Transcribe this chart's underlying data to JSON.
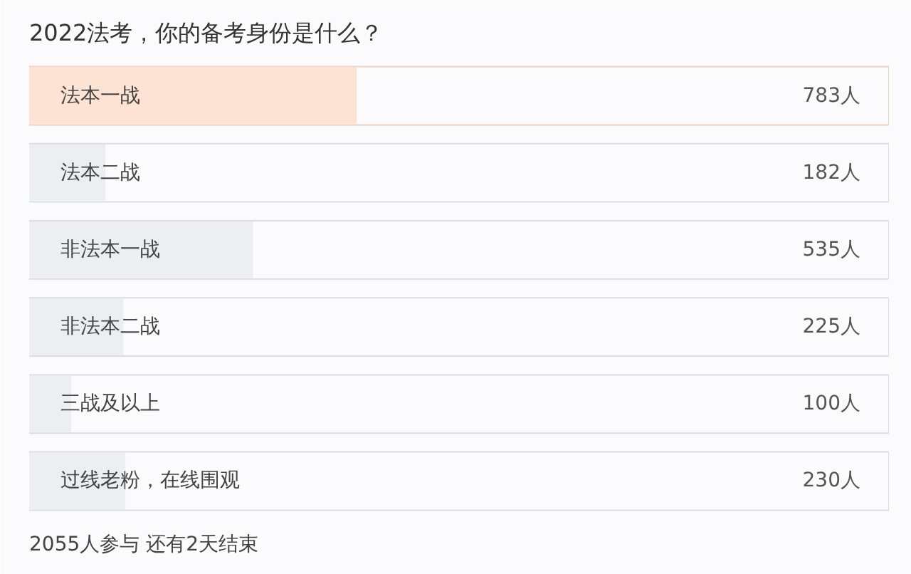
{
  "chart_data": {
    "type": "bar",
    "orientation": "horizontal",
    "title": "2022法考，你的备考身份是什么？",
    "categories": [
      "法本一战",
      "法本二战",
      "非法本一战",
      "非法本二战",
      "三战及以上",
      "过线老粉，在线围观"
    ],
    "values": [
      783,
      182,
      535,
      225,
      100,
      230
    ],
    "value_labels": [
      "783人",
      "182人",
      "535人",
      "225人",
      "100人",
      "230人"
    ],
    "colors": [
      "#fde3d3",
      "#eceef2",
      "#eceef2",
      "#eceef2",
      "#eceef2",
      "#eceef2"
    ],
    "xlim": [
      0,
      2055
    ],
    "tick_labels": false,
    "annotations": [
      "2055人参与 还有2天结束"
    ]
  }
}
